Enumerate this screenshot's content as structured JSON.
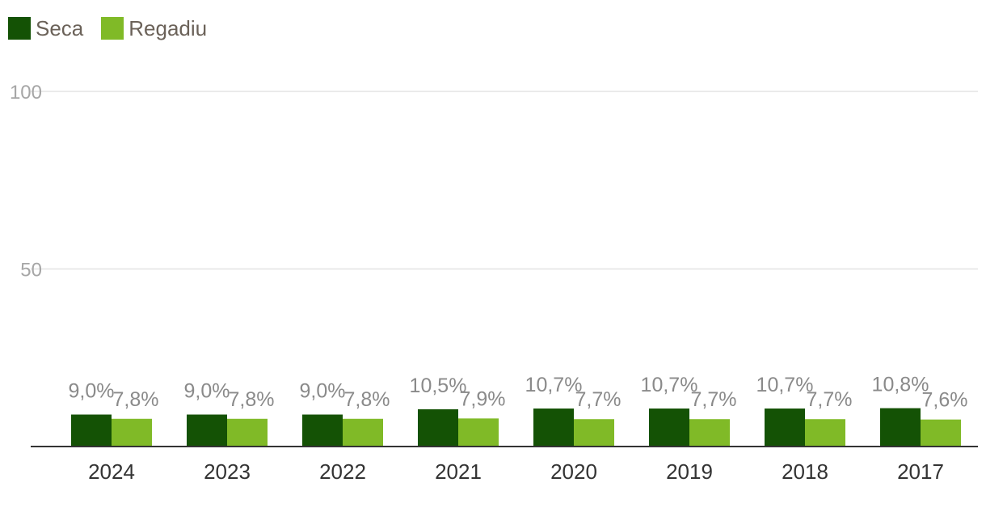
{
  "chart_data": {
    "type": "bar",
    "categories": [
      "2024",
      "2023",
      "2022",
      "2021",
      "2020",
      "2019",
      "2018",
      "2017"
    ],
    "series": [
      {
        "name": "Seca",
        "color": "#145205",
        "values": [
          9.0,
          9.0,
          9.0,
          10.5,
          10.7,
          10.7,
          10.7,
          10.8
        ],
        "labels": [
          "9,0%",
          "9,0%",
          "9,0%",
          "10,5%",
          "10,7%",
          "10,7%",
          "10,7%",
          "10,8%"
        ]
      },
      {
        "name": "Regadiu",
        "color": "#80ba27",
        "values": [
          7.8,
          7.8,
          7.8,
          7.9,
          7.7,
          7.7,
          7.7,
          7.6
        ],
        "labels": [
          "7,8%",
          "7,8%",
          "7,8%",
          "7,9%",
          "7,7%",
          "7,7%",
          "7,7%",
          "7,6%"
        ]
      }
    ],
    "yticks": [
      "50",
      "100"
    ],
    "ylim": [
      0,
      100
    ],
    "grid": true,
    "legend_position": "top-left"
  }
}
